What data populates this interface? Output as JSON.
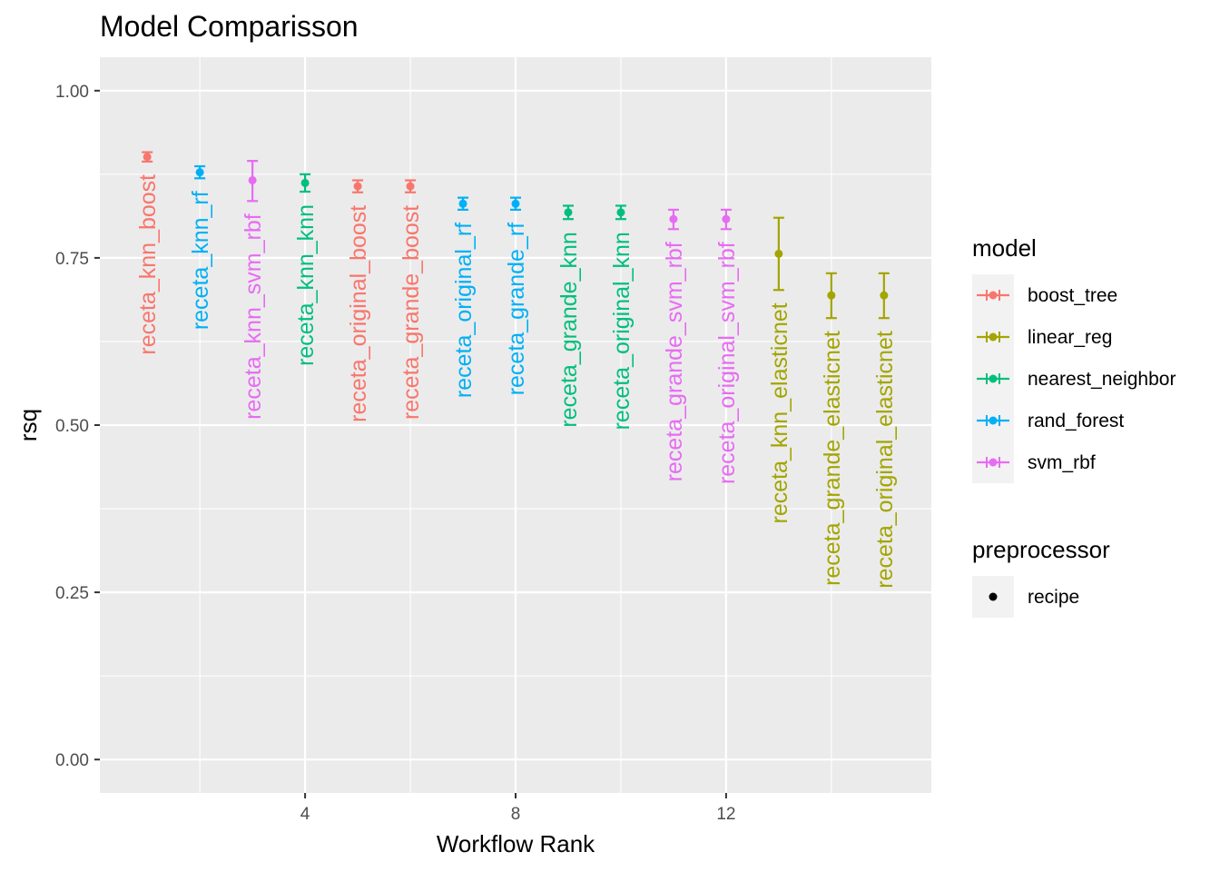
{
  "chart_data": {
    "type": "scatter",
    "title": "Model Comparisson",
    "xlabel": "Workflow Rank",
    "ylabel": "rsq",
    "xlim": [
      0.1,
      15.9
    ],
    "ylim": [
      -0.05,
      1.05
    ],
    "x_ticks": [
      4,
      8,
      12
    ],
    "y_ticks": [
      0,
      0.25,
      0.5,
      0.75,
      1.0
    ],
    "x_tick_labels": [
      "4",
      "8",
      "12"
    ],
    "y_tick_labels": [
      "0.00",
      "0.25",
      "0.50",
      "0.75",
      "1.00"
    ],
    "grid": true,
    "legend_position": "right",
    "legends": {
      "model": {
        "title": "model",
        "entries": [
          {
            "name": "boost_tree",
            "color": "#F8766D"
          },
          {
            "name": "linear_reg",
            "color": "#A3A500"
          },
          {
            "name": "nearest_neighbor",
            "color": "#00BF7D"
          },
          {
            "name": "rand_forest",
            "color": "#00B0F6"
          },
          {
            "name": "svm_rbf",
            "color": "#E76BF3"
          }
        ]
      },
      "preprocessor": {
        "title": "preprocessor",
        "entries": [
          {
            "name": "recipe",
            "color": "#000000"
          }
        ]
      }
    },
    "points": [
      {
        "rank": 1,
        "label": "receta_knn_boost",
        "model": "boost_tree",
        "mean": 0.901,
        "lower": 0.894,
        "upper": 0.908
      },
      {
        "rank": 2,
        "label": "receta_knn_rf",
        "model": "rand_forest",
        "mean": 0.878,
        "lower": 0.869,
        "upper": 0.887
      },
      {
        "rank": 3,
        "label": "receta_knn_svm_rbf",
        "model": "svm_rbf",
        "mean": 0.866,
        "lower": 0.835,
        "upper": 0.895
      },
      {
        "rank": 4,
        "label": "receta_knn_knn",
        "model": "nearest_neighbor",
        "mean": 0.862,
        "lower": 0.849,
        "upper": 0.875
      },
      {
        "rank": 5,
        "label": "receta_original_boost",
        "model": "boost_tree",
        "mean": 0.857,
        "lower": 0.848,
        "upper": 0.866
      },
      {
        "rank": 6,
        "label": "receta_grande_boost",
        "model": "boost_tree",
        "mean": 0.857,
        "lower": 0.848,
        "upper": 0.866
      },
      {
        "rank": 7,
        "label": "receta_original_rf",
        "model": "rand_forest",
        "mean": 0.831,
        "lower": 0.822,
        "upper": 0.84
      },
      {
        "rank": 8,
        "label": "receta_grande_rf",
        "model": "rand_forest",
        "mean": 0.831,
        "lower": 0.822,
        "upper": 0.84
      },
      {
        "rank": 9,
        "label": "receta_grande_knn",
        "model": "nearest_neighbor",
        "mean": 0.818,
        "lower": 0.808,
        "upper": 0.828
      },
      {
        "rank": 10,
        "label": "receta_original_knn",
        "model": "nearest_neighbor",
        "mean": 0.818,
        "lower": 0.808,
        "upper": 0.828
      },
      {
        "rank": 11,
        "label": "receta_grande_svm_rbf",
        "model": "svm_rbf",
        "mean": 0.808,
        "lower": 0.793,
        "upper": 0.822
      },
      {
        "rank": 12,
        "label": "receta_original_svm_rbf",
        "model": "svm_rbf",
        "mean": 0.808,
        "lower": 0.793,
        "upper": 0.822
      },
      {
        "rank": 13,
        "label": "receta_knn_elasticnet",
        "model": "linear_reg",
        "mean": 0.756,
        "lower": 0.702,
        "upper": 0.81
      },
      {
        "rank": 14,
        "label": "receta_grande_elasticnet",
        "model": "linear_reg",
        "mean": 0.694,
        "lower": 0.66,
        "upper": 0.727
      },
      {
        "rank": 15,
        "label": "receta_original_elasticnet",
        "model": "linear_reg",
        "mean": 0.694,
        "lower": 0.66,
        "upper": 0.727
      }
    ]
  }
}
